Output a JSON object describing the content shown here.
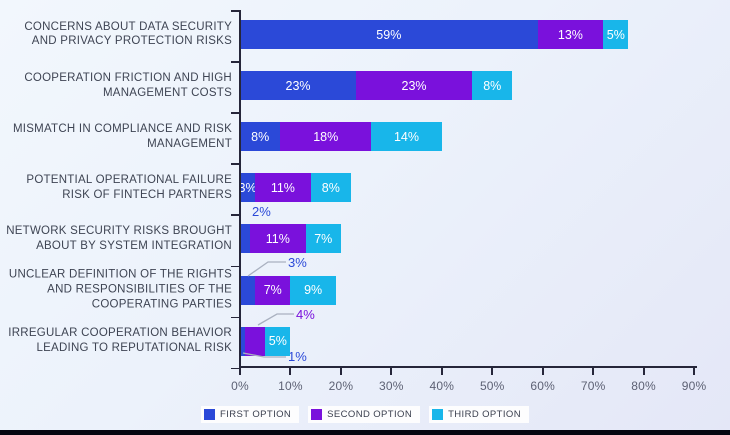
{
  "chart_data": {
    "type": "bar",
    "orientation": "horizontal",
    "stacked": true,
    "title": "",
    "xlabel": "",
    "ylabel": "",
    "xlim": [
      0,
      90
    ],
    "x_tick_labels": [
      "0%",
      "10%",
      "20%",
      "30%",
      "40%",
      "50%",
      "60%",
      "70%",
      "80%",
      "90%"
    ],
    "grid": false,
    "legend_position": "bottom",
    "categories": [
      "CONCERNS ABOUT DATA SECURITY AND PRIVACY PROTECTION RISKS",
      "COOPERATION FRICTION AND HIGH MANAGEMENT COSTS",
      "MISMATCH IN COMPLIANCE AND RISK MANAGEMENT",
      "POTENTIAL OPERATIONAL FAILURE RISK OF FINTECH PARTNERS",
      "NETWORK SECURITY RISKS BROUGHT ABOUT BY SYSTEM INTEGRATION",
      "UNCLEAR DEFINITION OF THE RIGHTS AND RESPONSIBILITIES OF THE COOPERATING PARTIES",
      "IRREGULAR COOPERATION BEHAVIOR LEADING TO REPUTATIONAL RISK"
    ],
    "series": [
      {
        "name": "FIRST OPTION",
        "color": "#2b49d8",
        "values": [
          59,
          23,
          8,
          3,
          2,
          3,
          1
        ]
      },
      {
        "name": "SECOND OPTION",
        "color": "#7a11dc",
        "values": [
          13,
          23,
          18,
          11,
          11,
          7,
          4
        ]
      },
      {
        "name": "THIRD OPTION",
        "color": "#18b6ea",
        "values": [
          5,
          8,
          14,
          8,
          7,
          9,
          5
        ]
      }
    ],
    "value_label_format": "{v}%",
    "value_label_positions": [
      [
        "inside",
        "inside",
        "inside"
      ],
      [
        "inside",
        "inside",
        "inside"
      ],
      [
        "inside",
        "inside",
        "inside"
      ],
      [
        "inside",
        "inside",
        "inside"
      ],
      [
        "above",
        "inside",
        "inside"
      ],
      [
        "above",
        "inside",
        "inside"
      ],
      [
        "below",
        "above",
        "inside"
      ]
    ],
    "callout_leader_color": "#a9b1c0"
  },
  "colors": {
    "background_top": "#f2f7fd",
    "background_bottom": "#e4e7f7",
    "axis": "#26263a",
    "category_text": "#3e4453",
    "tick_text": "#5d6174",
    "bottom_strip": "#05050f"
  }
}
